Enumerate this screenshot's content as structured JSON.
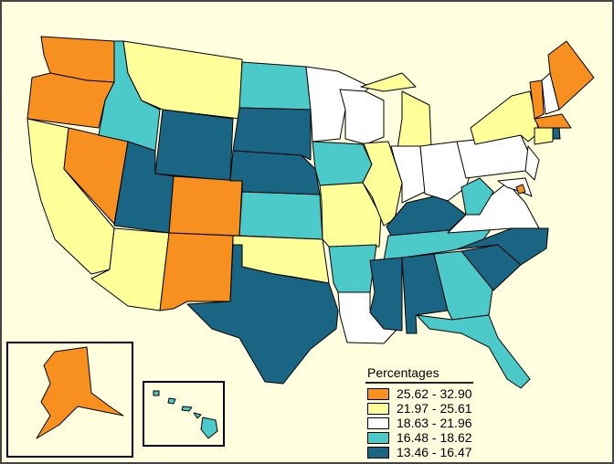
{
  "legend": {
    "title": "Percentages",
    "classes": [
      {
        "label": "25.62 - 32.90",
        "color": "#F7901E"
      },
      {
        "label": "21.97 - 25.61",
        "color": "#FFFF9A"
      },
      {
        "label": "18.63 - 21.96",
        "color": "#FFFFFF"
      },
      {
        "label": "16.48 - 18.62",
        "color": "#4CC9C9"
      },
      {
        "label": "13.46 - 16.47",
        "color": "#1B6584"
      }
    ]
  },
  "map_data": {
    "WA": 0,
    "OR": 0,
    "NV": 0,
    "CO": 0,
    "NM": 0,
    "VT": 0,
    "ME": 0,
    "MA": 0,
    "DC": 0,
    "AK": 0,
    "CA": 1,
    "MT": 1,
    "AZ": 1,
    "OK": 1,
    "MO": 1,
    "IL": 1,
    "MI": 1,
    "NY": 1,
    "CT": 1,
    "MN": 2,
    "WI": 2,
    "IN": 2,
    "OH": 2,
    "PA": 2,
    "NJ": 2,
    "NH": 2,
    "VA": 2,
    "MD": 2,
    "LA": 2,
    "ID": 3,
    "ND": 3,
    "KS": 3,
    "IA": 3,
    "AR": 3,
    "TN": 3,
    "GA": 3,
    "FL": 3,
    "WV": 3,
    "HI": 3,
    "WY": 4,
    "UT": 4,
    "SD": 4,
    "NE": 4,
    "TX": 4,
    "KY": 4,
    "MS": 4,
    "AL": 4,
    "SC": 4,
    "NC": 4,
    "RI": 4
  }
}
